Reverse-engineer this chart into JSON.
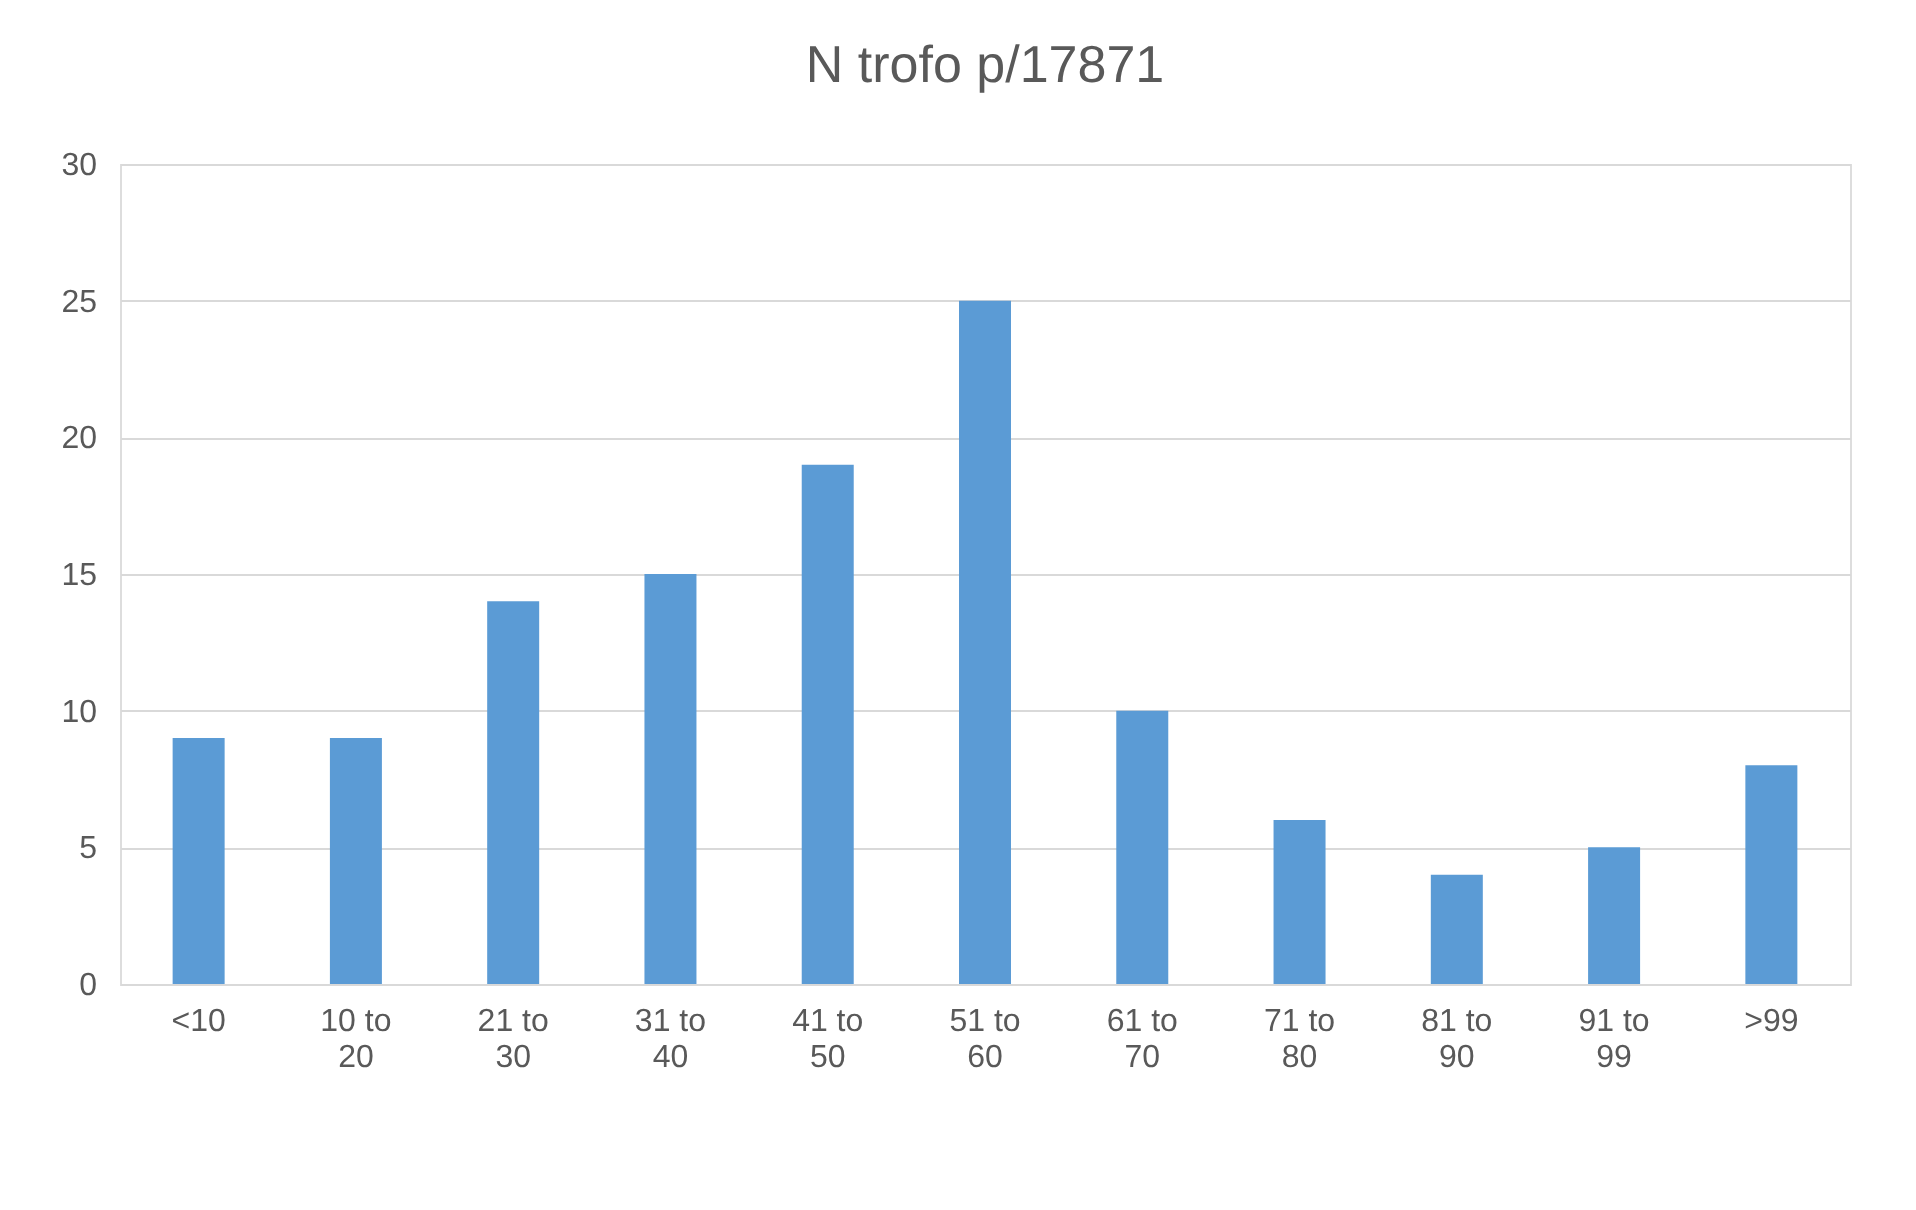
{
  "chart_data": {
    "type": "bar",
    "title": "N trofo p/17871",
    "categories": [
      "<10",
      "10 to 20",
      "21 to 30",
      "31 to 40",
      "41 to 50",
      "51 to 60",
      "61 to 70",
      "71 to 80",
      "81 to 90",
      "91 to 99",
      ">99"
    ],
    "values": [
      9,
      9,
      14,
      15,
      19,
      25,
      10,
      6,
      4,
      5,
      8
    ],
    "color": "#5b9bd5",
    "ylim": [
      0,
      30
    ],
    "yticks": [
      0,
      5,
      10,
      15,
      20,
      25,
      30
    ],
    "grid": "y"
  }
}
